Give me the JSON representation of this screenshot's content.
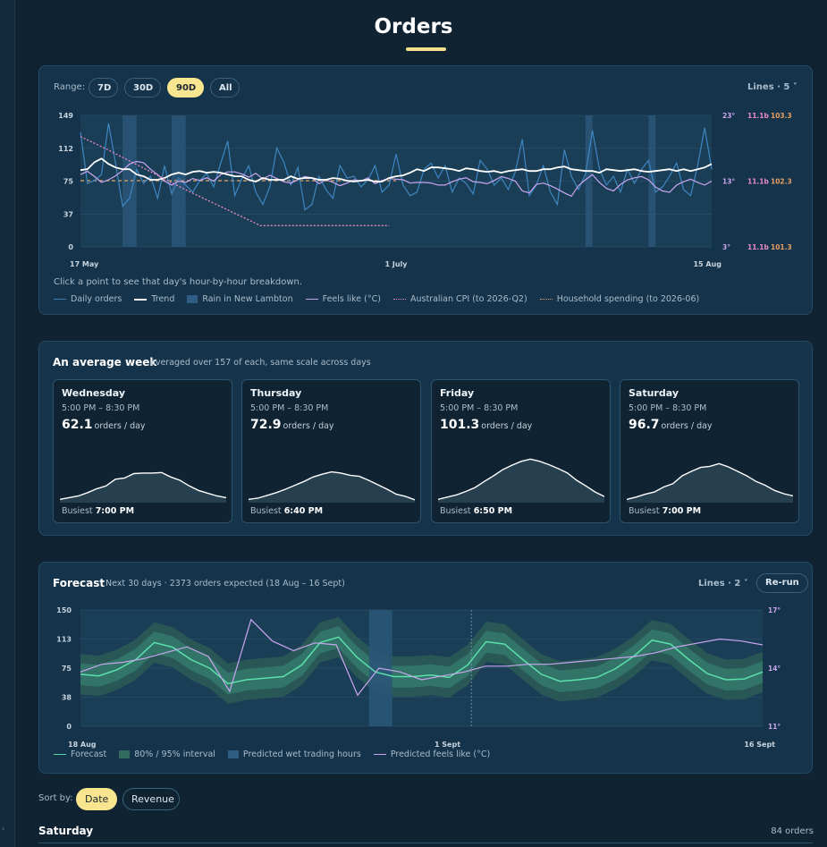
{
  "page": {
    "title": "Orders"
  },
  "history": {
    "range_label": "Range:",
    "ranges": [
      "7D",
      "30D",
      "90D",
      "All"
    ],
    "active_range": "90D",
    "lines_label": "Lines · 5",
    "hint": "Click a point to see that day's hour-by-hour breakdown.",
    "legend": [
      "Daily orders",
      "Trend",
      "Rain in New Lambton",
      "Feels like (°C)",
      "Australian CPI (to 2026-Q2)",
      "Household spending (to 2026-06)"
    ]
  },
  "week": {
    "title": "An average week",
    "subtitle": "averaged over 157 of each, same scale across days",
    "unit": "orders / day",
    "busiest_label": "Busiest",
    "days": [
      {
        "name": "Wednesday",
        "hours": "5:00 PM – 8:30 PM",
        "value": "62.1",
        "busiest": "7:00 PM",
        "curve": [
          6,
          9,
          12,
          18,
          25,
          30,
          42,
          44,
          52,
          53,
          53,
          54,
          46,
          40,
          30,
          22,
          17,
          12,
          9
        ]
      },
      {
        "name": "Thursday",
        "hours": "5:00 PM – 8:30 PM",
        "value": "72.9",
        "busiest": "6:40 PM",
        "curve": [
          6,
          8,
          13,
          18,
          24,
          31,
          38,
          46,
          51,
          55,
          53,
          49,
          47,
          40,
          32,
          24,
          15,
          11,
          5
        ]
      },
      {
        "name": "Friday",
        "hours": "5:00 PM – 8:30 PM",
        "value": "101.3",
        "busiest": "6:50 PM",
        "curve": [
          6,
          10,
          14,
          20,
          27,
          38,
          48,
          59,
          67,
          74,
          78,
          74,
          68,
          61,
          53,
          40,
          30,
          19,
          11
        ]
      },
      {
        "name": "Saturday",
        "hours": "5:00 PM – 8:30 PM",
        "value": "96.7",
        "busiest": "7:00 PM",
        "curve": [
          6,
          10,
          15,
          19,
          28,
          34,
          48,
          56,
          63,
          65,
          70,
          64,
          56,
          48,
          38,
          31,
          22,
          16,
          12
        ]
      }
    ]
  },
  "forecast": {
    "title": "Forecast",
    "subtitle": "Next 30 days · 2373 orders expected (18 Aug – 16 Sept)",
    "lines_label": "Lines · 2",
    "rerun_label": "Re-run",
    "legend": [
      "Forecast",
      "80% / 95% interval",
      "Predicted wet trading hours",
      "Predicted feels like (°C)"
    ]
  },
  "sort": {
    "label": "Sort by:",
    "options": [
      "Date",
      "Revenue"
    ],
    "active": "Date"
  },
  "group": {
    "title": "Saturday",
    "count": "84 orders"
  },
  "chart_data": [
    {
      "type": "line",
      "x_range": [
        "17 May",
        "15 Aug"
      ],
      "x_ticks": [
        "17 May",
        "1 July",
        "15 Aug"
      ],
      "y_left": {
        "ticks": [
          "0",
          "37",
          "75",
          "112",
          "149"
        ],
        "range": [
          0,
          149
        ]
      },
      "y_right_temp": {
        "ticks": [
          "3°",
          "13°",
          "23°"
        ],
        "range": [
          3,
          23
        ]
      },
      "y_right_cpi": {
        "ticks": [
          "11.1b",
          "11.1b",
          "11.1b"
        ]
      },
      "y_right_spend": {
        "ticks": [
          "101.3",
          "102.3",
          "103.3"
        ],
        "range": [
          101.3,
          103.3
        ]
      },
      "series": [
        {
          "name": "Daily orders",
          "values": [
            130,
            72,
            75,
            82,
            140,
            95,
            46,
            55,
            88,
            72,
            80,
            55,
            92,
            60,
            78,
            70,
            62,
            75,
            83,
            68,
            95,
            120,
            58,
            77,
            92,
            62,
            48,
            68,
            112,
            96,
            70,
            90,
            42,
            48,
            80,
            65,
            55,
            92,
            78,
            80,
            68,
            76,
            92,
            62,
            70,
            105,
            70,
            58,
            62,
            88,
            95,
            78,
            92,
            62,
            78,
            72,
            60,
            98,
            88,
            70,
            78,
            65,
            85,
            122,
            58,
            70,
            92,
            62,
            48,
            110,
            80,
            65,
            82,
            132,
            88,
            70,
            80,
            62,
            88,
            72,
            88,
            98,
            62,
            68,
            80,
            95,
            65,
            58,
            92,
            135,
            88
          ]
        },
        {
          "name": "Trend",
          "values": [
            87,
            88,
            96,
            100,
            94,
            90,
            88,
            88,
            82,
            80,
            76,
            76,
            78,
            82,
            84,
            82,
            85,
            86,
            84,
            85,
            84,
            82,
            80,
            80,
            76,
            74,
            78,
            76,
            76,
            76,
            80,
            77,
            78,
            78,
            76,
            76,
            78,
            77,
            75,
            74,
            75,
            76,
            74,
            74,
            78,
            80,
            81,
            84,
            88,
            86,
            90,
            90,
            89,
            88,
            86,
            89,
            88,
            86,
            85,
            86,
            84,
            86,
            87,
            88,
            86,
            86,
            88,
            88,
            90,
            91,
            88,
            87,
            86,
            86,
            84,
            88,
            87,
            86,
            87,
            88,
            86,
            85,
            86,
            87,
            88,
            86,
            88,
            86,
            88,
            90,
            94
          ]
        },
        {
          "name": "Feels like (°C)",
          "values": [
            14,
            14.5,
            13.7,
            12.8,
            13.2,
            13.8,
            14.6,
            15.6,
            16,
            15.8,
            14.8,
            14,
            13,
            12.4,
            13,
            12.8,
            13.4,
            13.1,
            13.5,
            13,
            14,
            14.4,
            14.4,
            14.1,
            13.6,
            14.2,
            13.3,
            13.9,
            13.4,
            12.9,
            12.7,
            13.2,
            13.7,
            13.5,
            12.6,
            13.2,
            12.8,
            12.3,
            12.7,
            13.2,
            13,
            13.5,
            12.6,
            13.1,
            13.4,
            13.3,
            13.2,
            12.7,
            12.8,
            12.8,
            12.7,
            12.4,
            12.4,
            12.9,
            13.3,
            13.5,
            12.9,
            12.8,
            12.6,
            13.1,
            13.7,
            13.4,
            13,
            11.5,
            11.2,
            12.5,
            12.7,
            12.3,
            11.8,
            11.2,
            10.7,
            12.3,
            13.2,
            14,
            12.8,
            11.9,
            11.5,
            12.5,
            13.2,
            13.5,
            13.7,
            13.2,
            12.1,
            11.5,
            11.3,
            12.4,
            12.9,
            13.3,
            12.8,
            12.4,
            13
          ]
        },
        {
          "name": "Australian CPI (to 2026-Q2)",
          "values": [
            125,
            111,
            96,
            81,
            66,
            52,
            38,
            24,
            24,
            24,
            24,
            24,
            24
          ]
        },
        {
          "name": "Household spending (to 2026-06)",
          "values": [
            75,
            75,
            75,
            75,
            75,
            75,
            75,
            75,
            75,
            75,
            75,
            75,
            75
          ]
        }
      ],
      "rain_bands": [
        [
          6,
          8
        ],
        [
          13,
          15
        ],
        [
          72,
          73
        ],
        [
          81,
          82
        ]
      ]
    },
    {
      "type": "line",
      "x_range": [
        "18 Aug",
        "16 Sept"
      ],
      "x_ticks": [
        "18 Aug",
        "1 Sept",
        "16 Sept"
      ],
      "y_left": {
        "ticks": [
          "0",
          "38",
          "75",
          "113",
          "150"
        ],
        "range": [
          0,
          150
        ]
      },
      "y_right_temp": {
        "ticks": [
          "11°",
          "14°",
          "17°"
        ],
        "range": [
          11,
          17
        ]
      },
      "series": [
        {
          "name": "Forecast",
          "values": [
            67,
            65,
            73,
            86,
            108,
            102,
            86,
            75,
            55,
            60,
            62,
            64,
            79,
            108,
            115,
            89,
            70,
            64,
            64,
            66,
            63,
            79,
            109,
            106,
            86,
            67,
            58,
            60,
            63,
            74,
            90,
            111,
            106,
            86,
            68,
            60,
            61,
            70
          ]
        },
        {
          "name": "Predicted feels like (°C)",
          "values": [
            13.8,
            14.2,
            14.3,
            14.5,
            14.8,
            15.1,
            14.6,
            12.8,
            16.5,
            15.4,
            14.9,
            15.3,
            15.2,
            12.6,
            14,
            13.8,
            13.4,
            13.6,
            13.8,
            14.1,
            14.1,
            14.2,
            14.2,
            14.3,
            14.4,
            14.5,
            14.6,
            14.8,
            15.1,
            15.3,
            15.5,
            15.4,
            15.2
          ]
        },
        {
          "name": "80% / 95% interval"
        }
      ],
      "wet_band": [
        14,
        15
      ],
      "today_marker": 15
    }
  ]
}
